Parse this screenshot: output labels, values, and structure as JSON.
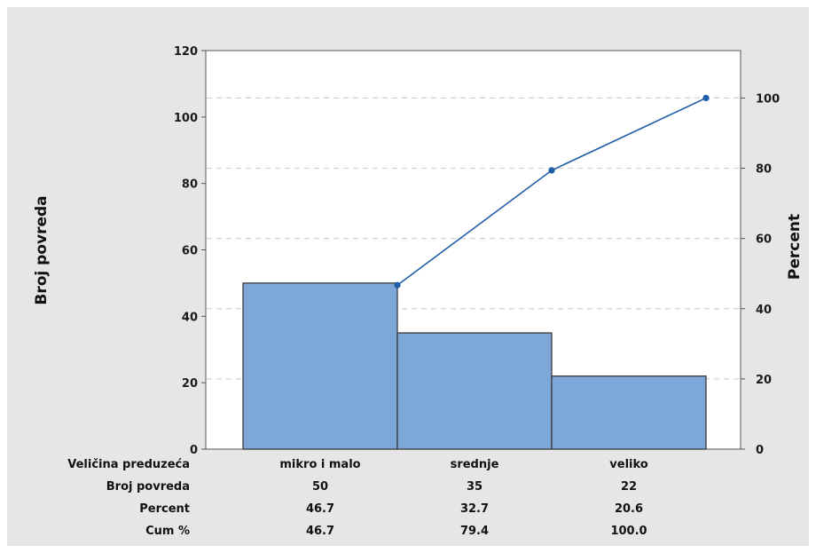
{
  "chart_data": {
    "type": "bar",
    "subtype": "pareto",
    "categories": [
      "mikro i malo",
      "srednje",
      "veliko"
    ],
    "series": [
      {
        "name": "Broj povreda",
        "type": "bar",
        "axis": "left",
        "values": [
          50,
          35,
          22
        ],
        "color": "#7da7d9"
      },
      {
        "name": "Cum %",
        "type": "line",
        "axis": "right",
        "values": [
          46.7,
          79.4,
          100.0
        ],
        "color": "#1f5ea8"
      }
    ],
    "ylabel": "Broj povreda",
    "y2label": "Percent",
    "ylim": [
      0,
      120
    ],
    "y2lim": [
      0,
      113.5
    ],
    "yticks": [
      0,
      20,
      40,
      60,
      80,
      100,
      120
    ],
    "y2ticks": [
      0,
      20,
      40,
      60,
      80,
      100
    ],
    "right_gridlines": "dashed",
    "table": {
      "rows": [
        {
          "label": "Veličina preduzeća",
          "values": [
            "mikro i malo",
            "srednje",
            "veliko"
          ]
        },
        {
          "label": "Broj povreda",
          "values": [
            "50",
            "35",
            "22"
          ]
        },
        {
          "label": "Percent",
          "values": [
            "46.7",
            "32.7",
            "20.6"
          ]
        },
        {
          "label": "Cum %",
          "values": [
            "46.7",
            "79.4",
            "100.0"
          ]
        }
      ]
    },
    "colors": {
      "background": "#e6e6e6",
      "plot": "#ffffff",
      "bar": "#7da7d9",
      "line": "#1f5ea8",
      "grid": "#d3d3d3"
    }
  }
}
